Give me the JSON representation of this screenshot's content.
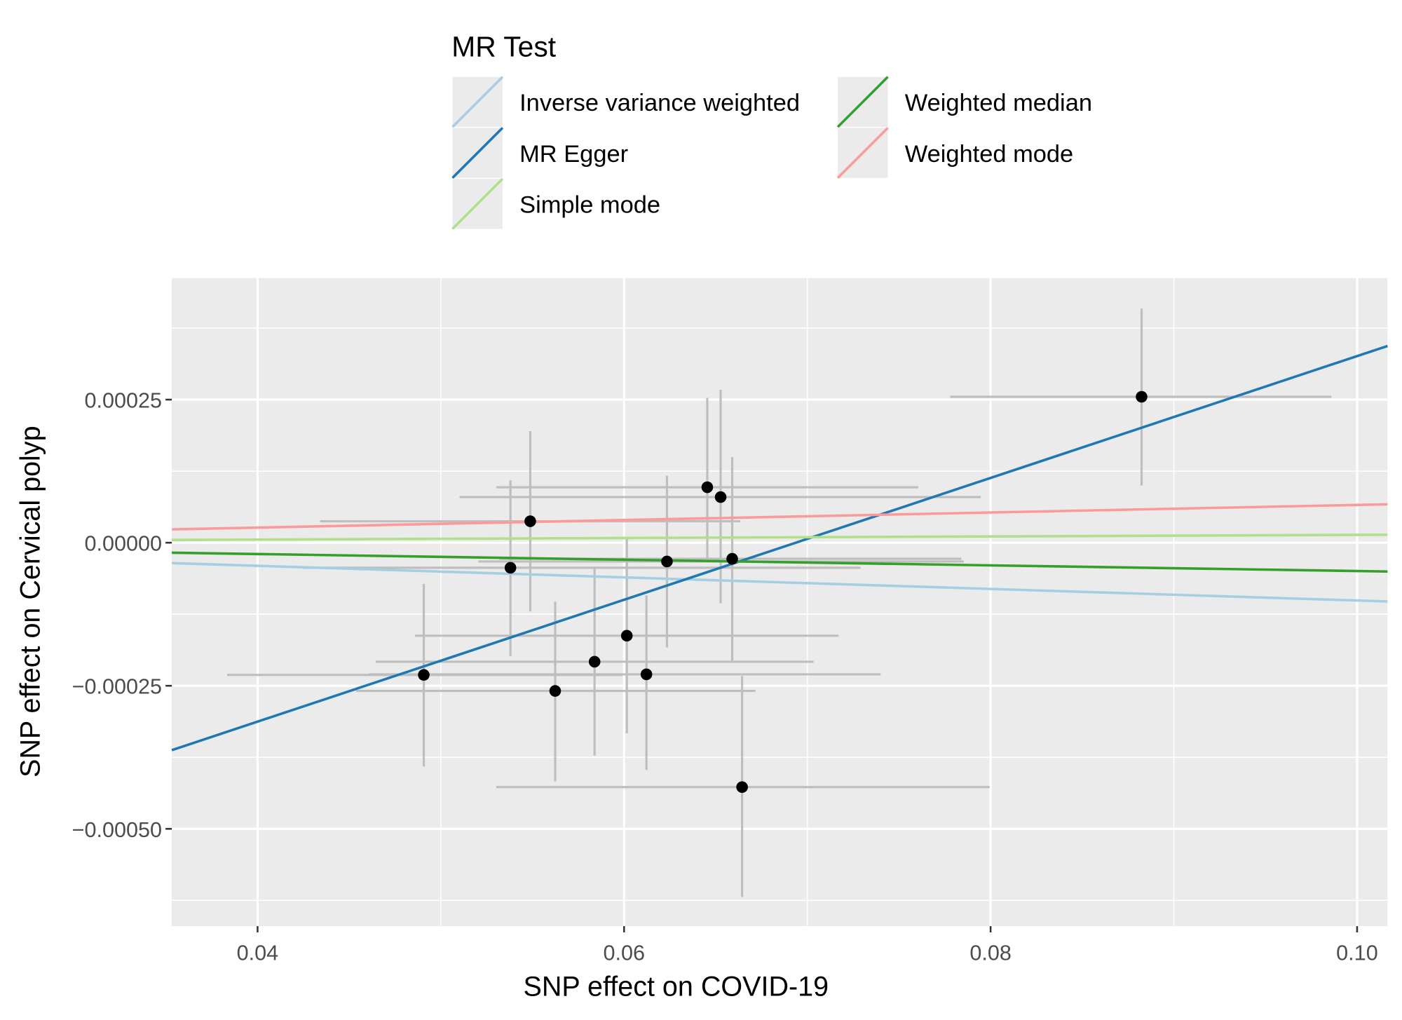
{
  "chart_data": {
    "type": "scatter",
    "xlabel": "SNP effect on  COVID-19",
    "ylabel": "SNP effect on Cervical polyp",
    "xlim": [
      0.03532,
      0.10166
    ],
    "ylim": [
      -0.00067,
      0.0004625
    ],
    "xticks": [
      0.04,
      0.06,
      0.08,
      0.1
    ],
    "xtick_labels": [
      "0.04",
      "0.06",
      "0.08",
      "0.10"
    ],
    "yticks": [
      0.00025,
      0,
      -0.00025,
      -0.0005
    ],
    "ytick_labels": [
      "0.00025",
      "0.00000",
      "−0.00025",
      "−0.00050"
    ],
    "grid": true,
    "legend": {
      "title": "MR Test",
      "placement": "top",
      "entries": [
        {
          "label": "Inverse variance weighted",
          "color": "#A6CEE3"
        },
        {
          "label": "MR Egger",
          "color": "#1F78B4"
        },
        {
          "label": "Simple mode",
          "color": "#B2DF8A"
        },
        {
          "label": "Weighted median",
          "color": "#33A02C"
        },
        {
          "label": "Weighted mode",
          "color": "#FB9A99"
        }
      ]
    },
    "lines": [
      {
        "name": "Inverse variance weighted",
        "slope": -0.00101,
        "intercept": 0,
        "color": "#A6CEE3"
      },
      {
        "name": "MR Egger",
        "slope": 0.010646,
        "intercept": -0.0007385,
        "color": "#1F78B4"
      },
      {
        "name": "Simple mode",
        "slope": 0.000137,
        "intercept": 0,
        "color": "#B2DF8A"
      },
      {
        "name": "Weighted median",
        "slope": -0.000495,
        "intercept": 0,
        "color": "#33A02C"
      },
      {
        "name": "Weighted mode",
        "slope": 0.00066,
        "intercept": 0,
        "color": "#FB9A99"
      }
    ],
    "points": [
      {
        "x": 0.08824,
        "y": 0.000255,
        "xlo": 0.0778,
        "xhi": 0.0986,
        "ylo": 0.0001,
        "yhi": 0.000409
      },
      {
        "x": 0.06454,
        "y": 9.69e-05,
        "xlo": 0.05302,
        "xhi": 0.07605,
        "ylo": -3e-05,
        "yhi": 0.000253
      },
      {
        "x": 0.06527,
        "y": 7.97e-05,
        "xlo": 0.05102,
        "xhi": 0.07946,
        "ylo": -0.000106,
        "yhi": 0.000267
      },
      {
        "x": 0.05488,
        "y": 3.75e-05,
        "xlo": 0.04341,
        "xhi": 0.06634,
        "ylo": -0.00012,
        "yhi": 0.000195
      },
      {
        "x": 0.0538,
        "y": -4.38e-05,
        "xlo": 0.0425,
        "xhi": 0.0729,
        "ylo": -0.000198,
        "yhi": 0.000109
      },
      {
        "x": 0.06234,
        "y": -3.28e-05,
        "xlo": 0.05205,
        "xhi": 0.07854,
        "ylo": -0.000183,
        "yhi": 0.000117
      },
      {
        "x": 0.0659,
        "y": -2.81e-05,
        "xlo": 0.0532,
        "xhi": 0.0784,
        "ylo": -0.000208,
        "yhi": 0.00015
      },
      {
        "x": 0.06015,
        "y": -0.0001625,
        "xlo": 0.04859,
        "xhi": 0.07171,
        "ylo": -0.000333,
        "yhi": 6.3e-06
      },
      {
        "x": 0.05839,
        "y": -0.000208,
        "xlo": 0.04644,
        "xhi": 0.07034,
        "ylo": -0.000372,
        "yhi": -4.5e-05
      },
      {
        "x": 0.06122,
        "y": -0.00023,
        "xlo": 0.0461,
        "xhi": 0.074,
        "ylo": -0.000397,
        "yhi": -9.2e-05
      },
      {
        "x": 0.04907,
        "y": -0.000231,
        "xlo": 0.03834,
        "xhi": 0.0599,
        "ylo": -0.000391,
        "yhi": -7.2e-05
      },
      {
        "x": 0.05624,
        "y": -0.000259,
        "xlo": 0.04537,
        "xhi": 0.06717,
        "ylo": -0.000417,
        "yhi": -0.000103
      },
      {
        "x": 0.06644,
        "y": -0.000427,
        "xlo": 0.05302,
        "xhi": 0.07995,
        "ylo": -0.000619,
        "yhi": -0.000233
      }
    ]
  }
}
